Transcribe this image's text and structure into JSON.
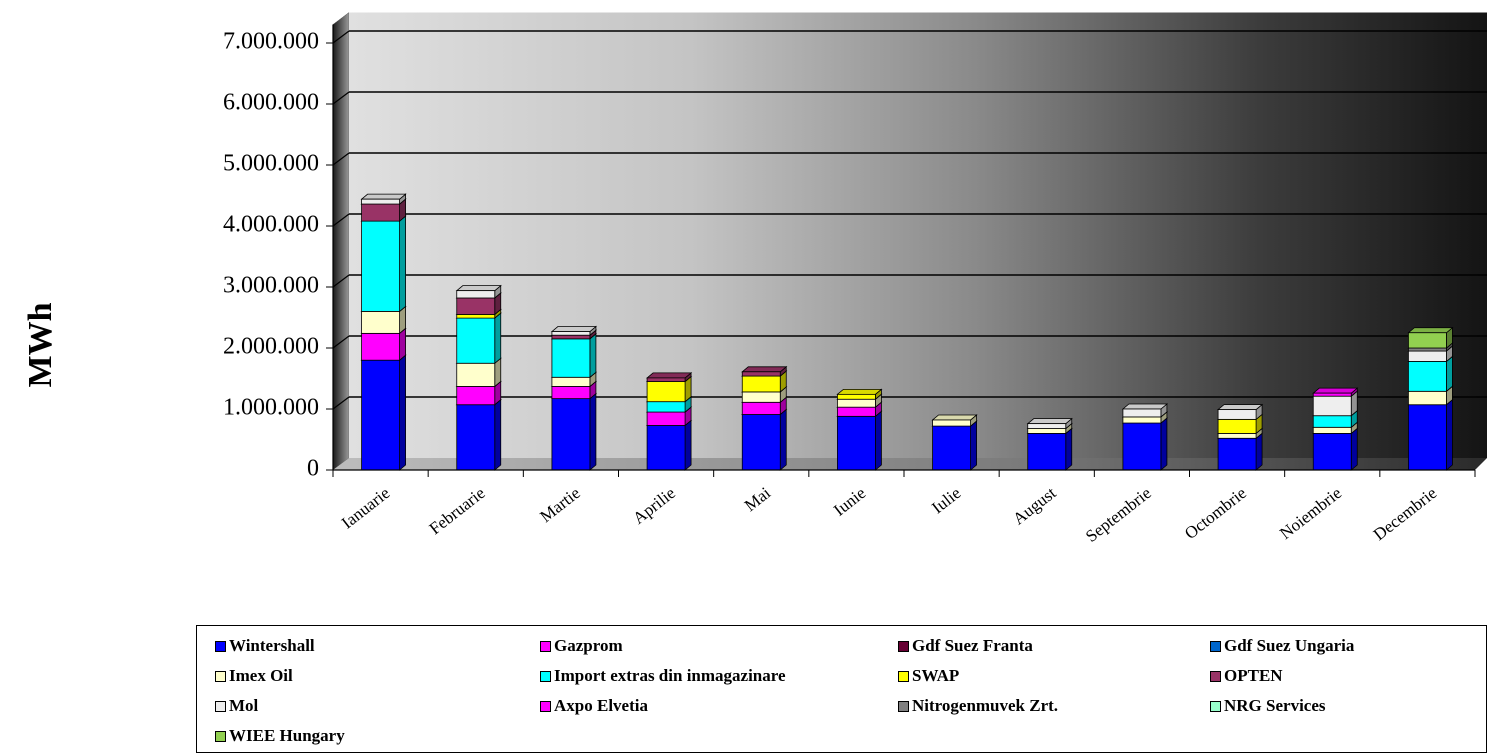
{
  "chart_data": {
    "type": "bar",
    "stacked": true,
    "ylabel": "MWh",
    "xlabel": "",
    "ylim": [
      0,
      7500000
    ],
    "yticks": [
      0,
      1000000,
      2000000,
      3000000,
      4000000,
      5000000,
      6000000,
      7000000
    ],
    "ytick_labels": [
      "0",
      "1.000.000",
      "2.000.000",
      "3.000.000",
      "4.000.000",
      "5.000.000",
      "6.000.000",
      "7.000.000"
    ],
    "grid": true,
    "legend_position": "bottom",
    "categories": [
      "Ianuarie",
      "Februarie",
      "Martie",
      "Aprilie",
      "Mai",
      "Iunie",
      "Iulie",
      "August",
      "Septembrie",
      "Octombrie",
      "Noiembrie",
      "Decembrie"
    ],
    "series": [
      {
        "name": "Wintershall",
        "color": "#0000ff",
        "values": [
          1800000,
          1070000,
          1170000,
          730000,
          910000,
          880000,
          720000,
          600000,
          770000,
          520000,
          600000,
          1070000
        ]
      },
      {
        "name": "Gazprom",
        "color": "#ff00ff",
        "values": [
          440000,
          300000,
          200000,
          220000,
          200000,
          150000,
          0,
          0,
          0,
          0,
          0,
          0
        ]
      },
      {
        "name": "Gdf Suez Franta",
        "color": "#660033",
        "values": [
          0,
          0,
          0,
          0,
          0,
          0,
          0,
          0,
          0,
          0,
          0,
          0
        ]
      },
      {
        "name": "Gdf Suez Ungaria",
        "color": "#0066cc",
        "values": [
          0,
          0,
          0,
          0,
          0,
          0,
          0,
          0,
          0,
          0,
          0,
          0
        ]
      },
      {
        "name": "Imex Oil",
        "color": "#ffffcc",
        "values": [
          360000,
          380000,
          150000,
          0,
          170000,
          130000,
          100000,
          80000,
          100000,
          80000,
          100000,
          220000
        ]
      },
      {
        "name": "Import extras din inmagazinare",
        "color": "#00ffff",
        "values": [
          1480000,
          740000,
          630000,
          170000,
          0,
          0,
          0,
          0,
          0,
          0,
          190000,
          490000
        ]
      },
      {
        "name": "SWAP",
        "color": "#ffff00",
        "values": [
          0,
          60000,
          0,
          330000,
          260000,
          80000,
          0,
          0,
          0,
          230000,
          0,
          0
        ]
      },
      {
        "name": "OPTEN",
        "color": "#993366",
        "values": [
          280000,
          270000,
          60000,
          60000,
          70000,
          0,
          0,
          0,
          0,
          0,
          0,
          0
        ]
      },
      {
        "name": "Mol",
        "color": "#eeeeee",
        "values": [
          80000,
          120000,
          60000,
          0,
          0,
          0,
          0,
          80000,
          130000,
          160000,
          320000,
          170000
        ]
      },
      {
        "name": "Axpo Elvetia",
        "color": "#ff00ff",
        "values": [
          0,
          0,
          0,
          0,
          0,
          0,
          0,
          0,
          0,
          0,
          50000,
          0
        ]
      },
      {
        "name": "Nitrogenmuvek Zrt.",
        "color": "#808080",
        "values": [
          0,
          0,
          0,
          0,
          0,
          0,
          0,
          0,
          0,
          0,
          0,
          50000
        ]
      },
      {
        "name": "NRG Services",
        "color": "#99ffcc",
        "values": [
          0,
          0,
          0,
          0,
          0,
          0,
          0,
          0,
          0,
          0,
          0,
          0
        ]
      },
      {
        "name": "WIEE Hungary",
        "color": "#92d050",
        "values": [
          0,
          0,
          0,
          0,
          0,
          0,
          0,
          0,
          0,
          0,
          0,
          250000
        ]
      }
    ]
  }
}
